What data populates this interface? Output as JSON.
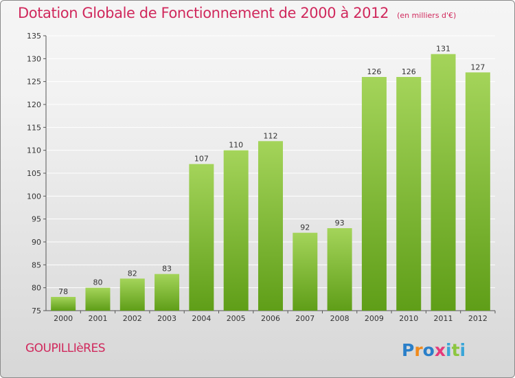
{
  "header": {
    "title": "Dotation Globale de Fonctionnement de 2000 à 2012",
    "subtitle": "(en milliers d'€)"
  },
  "footer": {
    "commune": "GOUPILLIèRES",
    "logo_text": "Proxiti"
  },
  "colors": {
    "title": "#d0285c",
    "bar_top": "#a4d45a",
    "bar_bottom": "#5f9e18",
    "grid": "#ffffff"
  },
  "chart_data": {
    "type": "bar",
    "title": "Dotation Globale de Fonctionnement de 2000 à 2012",
    "subtitle": "(en milliers d'€)",
    "xlabel": "",
    "ylabel": "",
    "categories": [
      "2000",
      "2001",
      "2002",
      "2003",
      "2004",
      "2005",
      "2006",
      "2007",
      "2008",
      "2009",
      "2010",
      "2011",
      "2012"
    ],
    "values": [
      78,
      80,
      82,
      83,
      107,
      110,
      112,
      92,
      93,
      126,
      126,
      131,
      127
    ],
    "ylim": [
      75,
      135
    ],
    "yticks": [
      75,
      80,
      85,
      90,
      95,
      100,
      105,
      110,
      115,
      120,
      125,
      130,
      135
    ],
    "grid": true,
    "data_labels": true
  }
}
